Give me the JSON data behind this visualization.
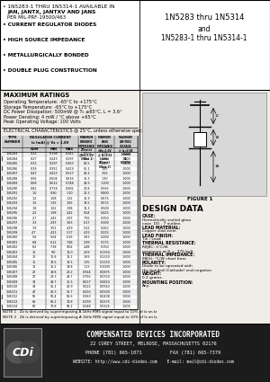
{
  "table_data": [
    [
      "1N5283",
      "0.22",
      "0.198",
      "0.242",
      "100.0",
      "2.75",
      "1.000"
    ],
    [
      "1N5284",
      "0.27",
      "0.243",
      "0.297",
      "75.2",
      "2.75",
      "1.000"
    ],
    [
      "1N5285",
      "0.33",
      "0.297",
      "0.363",
      "61.5",
      "2.25",
      "1.000"
    ],
    [
      "1N5286",
      "0.39",
      "0.351",
      "0.429",
      "52.1",
      "1.85",
      "1.000"
    ],
    [
      "1N5287",
      "0.47",
      "0.423",
      "0.517",
      "43.2",
      "1.55",
      "1.000"
    ],
    [
      "1N5288",
      "0.56",
      "0.504",
      "0.616",
      "36.3",
      "1.30",
      "1.000"
    ],
    [
      "1N5289",
      "0.68",
      "0.612",
      "0.748",
      "29.9",
      "1.100",
      "1.000"
    ],
    [
      "1N5290",
      "0.82",
      "0.738",
      "0.902",
      "24.8",
      "0.936",
      "1.000"
    ],
    [
      "1N5291",
      "1.0",
      "0.90",
      "1.10",
      "20.3",
      "0.800",
      "1.000"
    ],
    [
      "1N5292",
      "1.2",
      "1.08",
      "1.32",
      "16.9",
      "0.675",
      "1.000"
    ],
    [
      "1N5293",
      "1.5",
      "1.35",
      "1.65",
      "13.5",
      "0.575",
      "1.000"
    ],
    [
      "1N5294",
      "1.8",
      "1.62",
      "1.98",
      "11.3",
      "0.500",
      "1.000"
    ],
    [
      "1N5295",
      "2.2",
      "1.98",
      "2.42",
      "9.24",
      "0.425",
      "1.000"
    ],
    [
      "1N5296",
      "2.7",
      "2.43",
      "2.97",
      "7.55",
      "0.350",
      "1.000"
    ],
    [
      "1N5297",
      "3.3",
      "2.97",
      "3.63",
      "6.17",
      "0.300",
      "1.000"
    ],
    [
      "1N5298",
      "3.9",
      "3.51",
      "4.29",
      "5.22",
      "0.263",
      "1.000"
    ],
    [
      "1N5299",
      "4.7",
      "4.23",
      "5.17",
      "4.33",
      "0.225",
      "1.000"
    ],
    [
      "1N5300",
      "5.6",
      "5.04",
      "6.16",
      "3.63",
      "0.200",
      "1.000"
    ],
    [
      "1N5301",
      "6.8",
      "6.12",
      "7.48",
      "2.99",
      "0.175",
      "1.000"
    ],
    [
      "1N5302",
      "8.2",
      "7.38",
      "9.02",
      "2.48",
      "0.150",
      "1.000"
    ],
    [
      "1N5303",
      "10",
      "9.0",
      "11.0",
      "2.03",
      "0.1350",
      "1.000"
    ],
    [
      "1N5304",
      "12",
      "10.8",
      "13.2",
      "1.69",
      "0.1250",
      "1.000"
    ],
    [
      "1N5305",
      "15",
      "13.5",
      "16.5",
      "1.35",
      "0.1150",
      "1.000"
    ],
    [
      "1N5306",
      "18",
      "16.2",
      "19.8",
      "1.13",
      "0.1000",
      "1.000"
    ],
    [
      "1N5307",
      "22",
      "19.8",
      "24.2",
      "0.924",
      "0.0875",
      "1.000"
    ],
    [
      "1N5308",
      "27",
      "24.3",
      "29.7",
      "0.755",
      "0.0750",
      "1.000"
    ],
    [
      "1N5309",
      "33",
      "29.7",
      "36.3",
      "0.617",
      "0.0650",
      "1.000"
    ],
    [
      "1N5310",
      "39",
      "35.1",
      "42.9",
      "0.522",
      "0.0563",
      "1.000"
    ],
    [
      "1N5311",
      "47",
      "42.3",
      "51.7",
      "0.433",
      "0.0500",
      "1.000"
    ],
    [
      "1N5312",
      "56",
      "50.4",
      "61.6",
      "0.363",
      "0.0438",
      "1.000"
    ],
    [
      "1N5313",
      "68",
      "61.2",
      "74.8",
      "0.299",
      "0.0375",
      "1.000"
    ],
    [
      "1N5314",
      "82",
      "73.8",
      "90.2",
      "0.248",
      "0.0325",
      "1.000"
    ]
  ],
  "note1": "NOTE 1   Zz is derived by superimposing A 1kHz RMS signal equal to 10% of Iz on Iz",
  "note2": "NOTE 2   Zk is derived by superimposing A 1kHz RMS signal equal to 10% of Iz on Iz",
  "design_data": [
    [
      "CASE:",
      "Hermetically sealed glass\ncase. DO - 7 outline."
    ],
    [
      "LEAD MATERIAL:",
      "Copper clad steel."
    ],
    [
      "LEAD FINISH:",
      "Tin / Lead"
    ],
    [
      "THERMAL RESISTANCE:",
      "RθJθC: 3°C/W\nmaximum at θ = .375 bolt"
    ],
    [
      "THERMAL IMPEDANCE:",
      "θθJ(t): °C/W chart from"
    ],
    [
      "POLARITY:",
      "Diode to be operated with\nthe banded (Cathode) end negative."
    ],
    [
      "WEIGHT:",
      "0.2 grams."
    ],
    [
      "MOUNTING POSITION:",
      "Any."
    ]
  ],
  "company_name": "COMPENSATED DEVICES INCORPORATED",
  "company_address": "22 COREY STREET, MELROSE, MASSACHUSETTS 02176",
  "company_phone": "PHONE (781) 665-1071",
  "company_fax": "FAX (781) 665-7379",
  "company_website": "WEBSITE: http://www.cdi-diodes.com",
  "company_email": "E-mail: mail@cdi-diodes.com",
  "bg_color": "#f0ede8",
  "white": "#ffffff",
  "footer_bg": "#1a1a1a",
  "table_bg": "#e8e8e8"
}
